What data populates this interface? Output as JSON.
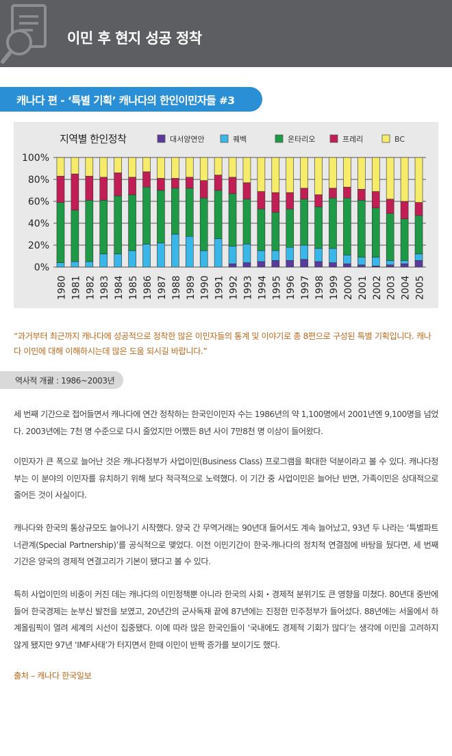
{
  "header": {
    "title": "이민 후 현지 성공 정착"
  },
  "banner": {
    "title": "캐나다 편 - ‘특별 기획’ 캐나다의 한인이민자들 #3"
  },
  "chart_data": {
    "type": "bar",
    "stacked": true,
    "title": "지역별 한인정착",
    "categories": [
      "1980",
      "1981",
      "1982",
      "1983",
      "1984",
      "1985",
      "1986",
      "1987",
      "1988",
      "1989",
      "1990",
      "1991",
      "1992",
      "1993",
      "1994",
      "1995",
      "1996",
      "1997",
      "1998",
      "1999",
      "2000",
      "2001",
      "2002",
      "2003",
      "2004",
      "2005"
    ],
    "ylim": [
      0,
      100
    ],
    "yticks": [
      "0%",
      "20%",
      "40%",
      "60%",
      "80%",
      "100%"
    ],
    "legend_position": "top",
    "grid": true,
    "series": [
      {
        "name": "대서양연안",
        "color": "#5b3a9d",
        "values": [
          0,
          0,
          0,
          0,
          0,
          0,
          0,
          0,
          0,
          0,
          0,
          0,
          3,
          4,
          5,
          6,
          6,
          7,
          5,
          4,
          3,
          2,
          1,
          2,
          3,
          6
        ]
      },
      {
        "name": "퀘벡",
        "color": "#39b7e8",
        "values": [
          4,
          5,
          5,
          12,
          12,
          15,
          21,
          22,
          30,
          28,
          15,
          26,
          16,
          17,
          10,
          9,
          12,
          13,
          12,
          13,
          8,
          7,
          8,
          4,
          3,
          6
        ]
      },
      {
        "name": "온타리오",
        "color": "#1e9a46",
        "values": [
          55,
          47,
          56,
          49,
          53,
          51,
          52,
          48,
          42,
          44,
          48,
          44,
          48,
          41,
          38,
          35,
          35,
          42,
          38,
          46,
          52,
          52,
          45,
          43,
          38,
          35
        ]
      },
      {
        "name": "프레리",
        "color": "#c21e56",
        "values": [
          24,
          33,
          22,
          21,
          21,
          16,
          14,
          11,
          9,
          10,
          16,
          14,
          15,
          15,
          16,
          18,
          15,
          10,
          11,
          9,
          10,
          10,
          15,
          13,
          16,
          12
        ]
      },
      {
        "name": "BC",
        "color": "#f7ec6a",
        "values": [
          17,
          15,
          17,
          18,
          14,
          18,
          13,
          19,
          19,
          18,
          21,
          16,
          18,
          23,
          31,
          32,
          32,
          28,
          34,
          28,
          27,
          29,
          31,
          38,
          40,
          41
        ]
      }
    ]
  },
  "intro_quote": "“과거부터 최근까지 캐나다에 성공적으로 정착한 많은 이민자들의 통계 및 이야기로 총 8편으로 구성된 특별 기획입니다. 캐나다 이민에 대해 이해하시는데 많은 도움 되시길 바랍니다.”",
  "section": {
    "title": "역사적 개괄 : 1986~2003년"
  },
  "body": {
    "p1": "세 번째 기간으로 접어들면서 캐나다에 연간 정착하는 한국인이민자 수는 1986년의 약 1,100명에서 2001년엔 9,100명을 넘었다. 2003년에는 7천 명 수준으로 다시 줄었지만 어쨌든 8년 사이 7만8천 명 이상이 들어왔다.",
    "p2": "이민자가 큰 폭으로 늘어난 것은 캐나다정부가 사업이민(Business Class) 프로그램을 확대한 덕분이라고 볼 수 있다. 캐나다정부는 이 분야의 이민자를 유치하기 위해 보다 적극적으로 노력했다. 이 기간 중 사업이민은 늘어난 반면, 가족이민은 상대적으로 줄어든 것이 사실이다.",
    "p3": "캐나다와 한국의 통상규모도 늘어나기 시작했다. 양국 간 무역거래는 90년대 들어서도 계속 늘어났고, 93년 두 나라는 ‘특별파트너관계(Special Partnership)’를 공식적으로 맺었다. 이전 이민기간이 한국-캐나다의 정치적 연결점에 바탕을 뒀다면, 세 번째 기간은 양국의 경제적 연결고리가 기본이 됐다고 볼 수 있다.",
    "p4": "특히 사업이민의 비중이 커진 데는 캐나다의 이민정책뿐 아니라 한국의 사회・경제적 분위기도 큰 영향을 미쳤다. 80년대 중반에 들어 한국경제는 눈부신 발전을 보였고, 20년간의 군사독재 끝에 87년에는 진정한 민주정부가 들어섰다. 88년에는 서울에서 하계올림픽이 열려 세계의 시선이 집중됐다. 이에 따라 많은 한국인들이 ‘국내에도 경제적 기회가 많다’는 생각에 이민을 고려하지 않게 됐지만 97년 ‘IMF사태’가 터지면서 한때 이민이 반짝 증가를 보이기도 했다."
  },
  "source": "출처 – 캐나다 한국일보"
}
